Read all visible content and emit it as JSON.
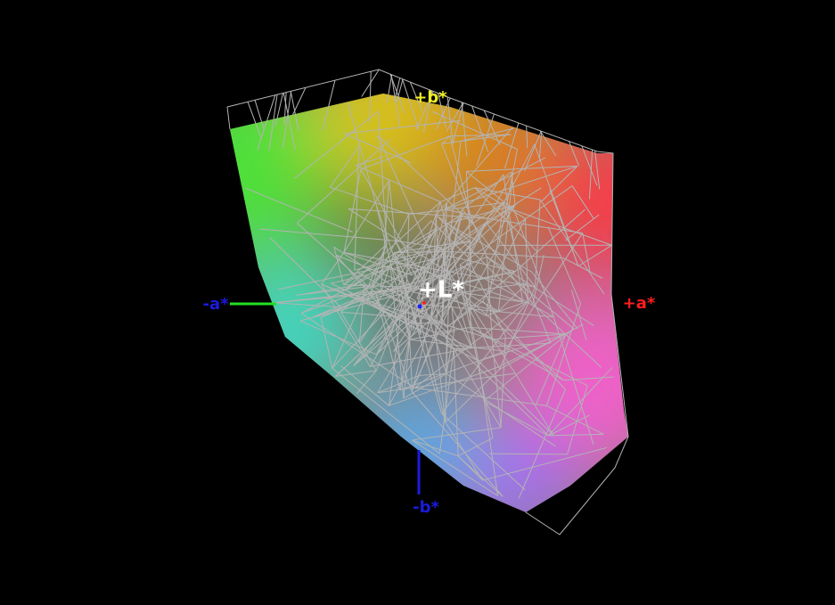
{
  "axes": {
    "l_plus": "+L*",
    "a_plus": "+a*",
    "a_minus": "-a*",
    "b_plus": "+b*",
    "b_minus": "-b*"
  }
}
